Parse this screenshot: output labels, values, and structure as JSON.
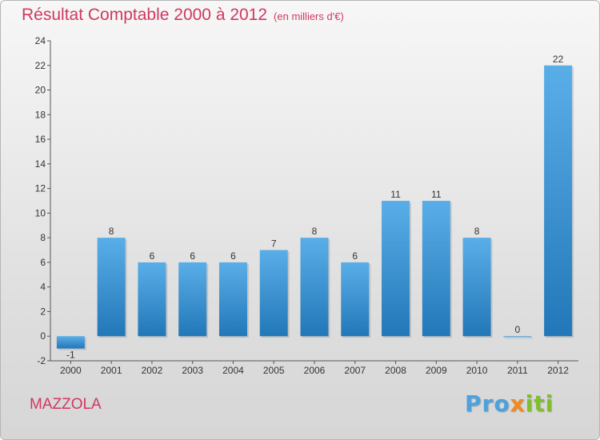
{
  "chart_data": {
    "type": "bar",
    "title": "Résultat Comptable 2000 à 2012",
    "subtitle": "(en milliers d'€)",
    "categories": [
      "2000",
      "2001",
      "2002",
      "2003",
      "2004",
      "2005",
      "2006",
      "2007",
      "2008",
      "2009",
      "2010",
      "2011",
      "2012"
    ],
    "values": [
      -1,
      8,
      6,
      6,
      6,
      7,
      8,
      6,
      11,
      11,
      8,
      0,
      22
    ],
    "value_labels": [
      "-1",
      "8",
      "6",
      "6",
      "6",
      "7",
      "8",
      "6",
      "11",
      "11",
      "8",
      "0",
      "22"
    ],
    "yticks": [
      "-2",
      "0",
      "2",
      "4",
      "6",
      "8",
      "10",
      "12",
      "14",
      "16",
      "18",
      "20",
      "22",
      "24"
    ],
    "ylim": [
      -2,
      24
    ],
    "xlabel": "",
    "ylabel": "",
    "grid": false,
    "bar_color_light": "#5aaee8",
    "bar_color_dark": "#2277b8",
    "title_color": "#d0385e"
  },
  "footer": {
    "commune": "MAZZOLA",
    "brand_pro": "Pro",
    "brand_x": "x",
    "brand_iti": "iti"
  }
}
